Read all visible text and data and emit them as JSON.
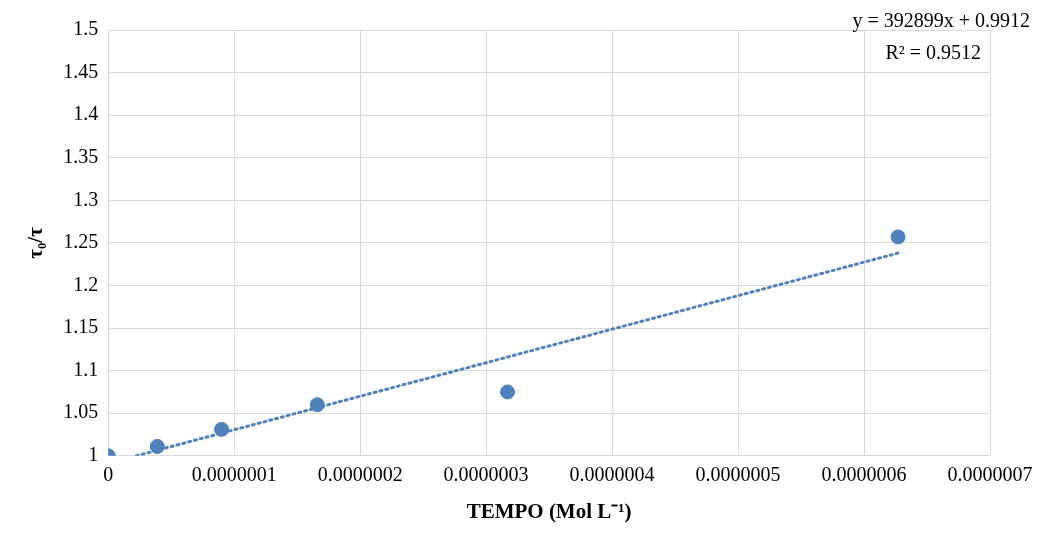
{
  "chart_data": {
    "type": "scatter",
    "xlabel": "TEMPO (Mol L⁻¹)",
    "ylabel": "τ₀/τ",
    "x": [
      0,
      3.9e-08,
      9e-08,
      1.66e-07,
      3.17e-07,
      6.27e-07
    ],
    "series": [
      {
        "color": "#4f81bd",
        "values": [
          1,
          1.011,
          1.031,
          1.06,
          1.075,
          1.257
        ]
      },
      {
        "type": "line",
        "color": "#4f81bd",
        "line_style": "dotted",
        "marker": "none",
        "x": [
          2.24e-08,
          6.27e-07
        ],
        "values": [
          1,
          1.238
        ]
      }
    ],
    "xlim": [
      0,
      7e-07
    ],
    "ylim": [
      1,
      1.5
    ],
    "xticks": [
      0,
      {
        "value": 1e-07,
        "label": "0.0000001"
      },
      {
        "value": 2e-07,
        "label": "0.0000002"
      },
      {
        "value": 3e-07,
        "label": "0.0000003"
      },
      {
        "value": 4e-07,
        "label": "0.0000004"
      },
      {
        "value": 5e-07,
        "label": "0.0000005"
      },
      {
        "value": 6e-07,
        "label": "0.0000006"
      },
      {
        "value": 7e-07,
        "label": "0.0000007"
      }
    ],
    "yticks": [
      1,
      1.05,
      1.1,
      1.15,
      1.2,
      1.25,
      1.3,
      1.35,
      1.4,
      1.45,
      1.5
    ],
    "annotations": [
      "y = 392899x + 0.9912",
      "R² = 0.9512"
    ],
    "grid": true,
    "legend": false,
    "marker": "circle"
  }
}
